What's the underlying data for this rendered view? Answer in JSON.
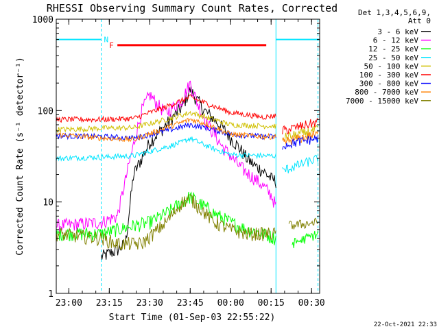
{
  "chart_data": {
    "type": "line",
    "title": "RHESSI Observing Summary Count Rates, Corrected",
    "xlabel": "Start Time (01-Sep-03 22:55:22)",
    "ylabel": "Corrected Count Rate (s⁻¹ detector⁻¹)",
    "yscale": "log",
    "ylim": [
      1,
      1000
    ],
    "xlim": [
      22.9222,
      24.55
    ],
    "yticks": [
      1,
      10,
      100,
      1000
    ],
    "ytick_labels": [
      "1",
      "10",
      "100",
      "1000"
    ],
    "xticks": [
      23.0,
      23.25,
      23.5,
      23.75,
      24.0,
      24.25,
      24.5
    ],
    "xtick_labels": [
      "23:00",
      "23:15",
      "23:30",
      "23:45",
      "00:00",
      "00:15",
      "00:30"
    ],
    "legend_header": [
      "Det 1,3,4,5,6,9,",
      "Att 0"
    ],
    "legend_position": "top-right",
    "timestamp": "22-Oct-2021 22:33",
    "annotations": [
      {
        "label": "N",
        "type": "night-bar",
        "color": "#00e5ff",
        "x_start": 22.9222,
        "x_end": 23.2,
        "y": 600
      },
      {
        "label": "N",
        "type": "night-bar",
        "color": "#00e5ff",
        "x_start": 24.28,
        "x_end": 24.55,
        "y": 600
      },
      {
        "label": "F",
        "type": "flare-bar",
        "color": "#ff0000",
        "x_start": 23.3,
        "x_end": 24.22,
        "y": 520
      }
    ],
    "night_lines_x": [
      23.2,
      24.28,
      24.54
    ],
    "series": [
      {
        "name": "3 - 6 keV",
        "color": "#000000",
        "x": [
          23.2,
          23.3,
          23.35,
          23.4,
          23.5,
          23.6,
          23.7,
          23.75,
          23.8,
          23.85,
          23.9,
          23.95,
          24.0,
          24.05,
          24.1,
          24.15,
          24.2,
          24.25,
          24.28
        ],
        "y": [
          2.5,
          3,
          3.5,
          20,
          45,
          70,
          110,
          170,
          125,
          95,
          80,
          65,
          50,
          40,
          30,
          25,
          22,
          18,
          17
        ]
      },
      {
        "name": "6 - 12 keV",
        "color": "#ff00ff",
        "x": [
          22.9222,
          23.2,
          23.3,
          23.38,
          23.45,
          23.5,
          23.55,
          23.6,
          23.7,
          23.75,
          23.8,
          23.85,
          23.9,
          23.95,
          24.0,
          24.05,
          24.1,
          24.15,
          24.2,
          24.25,
          24.28
        ],
        "y": [
          5.5,
          6,
          7,
          30,
          100,
          150,
          115,
          95,
          130,
          200,
          115,
          75,
          55,
          40,
          32,
          25,
          21,
          18,
          15,
          12,
          9
        ]
      },
      {
        "name": "12 - 25 keV",
        "color": "#00ff00",
        "x": [
          22.9222,
          23.2,
          23.3,
          23.4,
          23.5,
          23.6,
          23.7,
          23.75,
          23.8,
          23.9,
          24.0,
          24.1,
          24.2,
          24.28
        ],
        "y": [
          4.5,
          4.5,
          5,
          5.5,
          6,
          7.5,
          10,
          11.5,
          10,
          7.5,
          6,
          5,
          4.5,
          4
        ]
      },
      {
        "name": "25 - 50 keV",
        "color": "#00e5ff",
        "x": [
          22.9222,
          23.2,
          23.4,
          23.6,
          23.7,
          23.75,
          23.8,
          23.9,
          24.0,
          24.2,
          24.28
        ],
        "y": [
          30,
          31,
          32,
          40,
          45,
          50,
          45,
          38,
          33,
          32,
          32
        ]
      },
      {
        "name": "50 - 100 keV",
        "color": "#d0c000",
        "x": [
          22.9222,
          23.2,
          23.4,
          23.6,
          23.75,
          23.85,
          24.0,
          24.2,
          24.28
        ],
        "y": [
          62,
          64,
          65,
          80,
          95,
          85,
          70,
          68,
          68
        ]
      },
      {
        "name": "100 - 300 keV",
        "color": "#ff0000",
        "x": [
          22.9222,
          23.2,
          23.4,
          23.6,
          23.75,
          23.85,
          24.0,
          24.2,
          24.28
        ],
        "y": [
          80,
          80,
          82,
          110,
          140,
          120,
          95,
          85,
          88
        ]
      },
      {
        "name": "300 - 800 keV",
        "color": "#0000ff",
        "x": [
          22.9222,
          23.2,
          23.4,
          23.6,
          23.75,
          23.85,
          24.0,
          24.2,
          24.28
        ],
        "y": [
          53,
          52,
          50,
          60,
          70,
          65,
          55,
          52,
          52
        ]
      },
      {
        "name": "800 - 7000 keV",
        "color": "#ff8000",
        "x": [
          22.9222,
          23.2,
          23.4,
          23.6,
          23.75,
          23.85,
          24.0,
          24.2,
          24.28
        ],
        "y": [
          55,
          50,
          48,
          65,
          80,
          72,
          55,
          52,
          52
        ]
      },
      {
        "name": "7000 - 15000 keV",
        "color": "#808000",
        "x": [
          22.9222,
          23.2,
          23.3,
          23.45,
          23.6,
          23.7,
          23.75,
          23.8,
          23.9,
          24.0,
          24.1,
          24.2,
          24.28
        ],
        "y": [
          4.5,
          4,
          3.5,
          3.5,
          6,
          10,
          11,
          9,
          6,
          5,
          4.5,
          4.5,
          4.5
        ]
      }
    ],
    "post_night_series": [
      {
        "color": "#ff0000",
        "x": [
          24.32,
          24.54
        ],
        "y": [
          60,
          75
        ]
      },
      {
        "color": "#d0c000",
        "x": [
          24.32,
          24.54
        ],
        "y": [
          50,
          62
        ]
      },
      {
        "color": "#ff8000",
        "x": [
          24.32,
          24.54
        ],
        "y": [
          45,
          55
        ]
      },
      {
        "color": "#0000ff",
        "x": [
          24.32,
          24.54
        ],
        "y": [
          42,
          50
        ]
      },
      {
        "color": "#00e5ff",
        "x": [
          24.32,
          24.54
        ],
        "y": [
          22,
          30
        ]
      },
      {
        "color": "#808000",
        "x": [
          24.36,
          24.54
        ],
        "y": [
          5.5,
          6
        ]
      },
      {
        "color": "#00ff00",
        "x": [
          24.38,
          24.54
        ],
        "y": [
          3.5,
          4.5
        ]
      }
    ]
  }
}
